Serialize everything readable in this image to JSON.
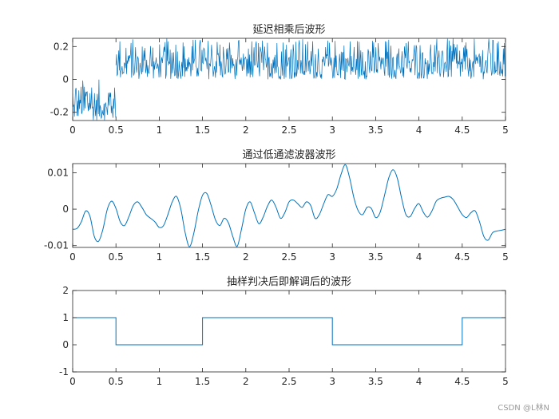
{
  "watermark": "CSDN @L林N",
  "chart_data": [
    {
      "type": "line",
      "title": "延迟相乘后波形",
      "xlim": [
        0,
        5
      ],
      "ylim": [
        -0.25,
        0.25
      ],
      "x_ticks": [
        0,
        0.5,
        1,
        1.5,
        2,
        2.5,
        3,
        3.5,
        4,
        4.5,
        5
      ],
      "x_tick_labels": [
        "0",
        "0.5",
        "1",
        "1.5",
        "2",
        "2.5",
        "3",
        "3.5",
        "4",
        "4.5",
        "5"
      ],
      "y_ticks": [
        -0.2,
        0,
        0.2
      ],
      "y_tick_labels": [
        "-0.2",
        "0",
        "0.2"
      ],
      "color": "#0072BD",
      "series": [
        {
          "segments": [
            {
              "x_range": [
                0,
                0.5
              ],
              "baseline": 0.0,
              "min": -0.25,
              "max": 0.0,
              "note_kind": "noise"
            },
            {
              "x_range": [
                0.5,
                5
              ],
              "baseline": 0.0,
              "min": 0.0,
              "max": 0.25,
              "note_kind": "noise"
            }
          ]
        }
      ]
    },
    {
      "type": "line",
      "title": "通过低通滤波器波形",
      "xlim": [
        0,
        5
      ],
      "ylim": [
        -0.0105,
        0.0125
      ],
      "x_ticks": [
        0,
        0.5,
        1,
        1.5,
        2,
        2.5,
        3,
        3.5,
        4,
        4.5,
        5
      ],
      "x_tick_labels": [
        "0",
        "0.5",
        "1",
        "1.5",
        "2",
        "2.5",
        "3",
        "3.5",
        "4",
        "4.5",
        "5"
      ],
      "y_ticks": [
        -0.01,
        0,
        0.01
      ],
      "y_tick_labels": [
        "-0.01",
        "0",
        "0.01"
      ],
      "color": "#0072BD",
      "series": [
        {
          "x": [
            0,
            0.05,
            0.1,
            0.15,
            0.2,
            0.25,
            0.3,
            0.35,
            0.4,
            0.45,
            0.5,
            0.55,
            0.6,
            0.65,
            0.7,
            0.75,
            0.8,
            0.85,
            0.9,
            0.95,
            1.0,
            1.05,
            1.1,
            1.15,
            1.2,
            1.25,
            1.3,
            1.35,
            1.4,
            1.45,
            1.5,
            1.55,
            1.6,
            1.65,
            1.7,
            1.75,
            1.8,
            1.85,
            1.9,
            1.95,
            2.0,
            2.05,
            2.1,
            2.15,
            2.2,
            2.25,
            2.3,
            2.35,
            2.4,
            2.45,
            2.5,
            2.55,
            2.6,
            2.65,
            2.7,
            2.75,
            2.8,
            2.85,
            2.9,
            2.95,
            3.0,
            3.05,
            3.1,
            3.15,
            3.2,
            3.25,
            3.3,
            3.35,
            3.4,
            3.45,
            3.5,
            3.55,
            3.6,
            3.65,
            3.7,
            3.75,
            3.8,
            3.85,
            3.9,
            3.95,
            4.0,
            4.05,
            4.1,
            4.15,
            4.2,
            4.25,
            4.3,
            4.35,
            4.4,
            4.45,
            4.5,
            4.55,
            4.6,
            4.65,
            4.7,
            4.75,
            4.8,
            4.85,
            4.9,
            4.95,
            5.0
          ],
          "y": [
            -0.0055,
            -0.0053,
            -0.0035,
            -0.0005,
            -0.002,
            -0.0075,
            -0.0088,
            -0.0055,
            0.0,
            0.0022,
            0.0002,
            -0.0035,
            -0.0045,
            -0.002,
            0.001,
            0.002,
            0.0005,
            -0.0015,
            -0.0025,
            -0.0035,
            -0.005,
            -0.0045,
            -0.0015,
            0.002,
            0.0035,
            0.0,
            -0.0065,
            -0.0103,
            -0.0065,
            -0.0005,
            0.0038,
            0.0043,
            0.001,
            -0.003,
            -0.0045,
            -0.0025,
            -0.0038,
            -0.0075,
            -0.0102,
            -0.0055,
            0.0,
            0.002,
            -0.001,
            -0.004,
            -0.0022,
            0.0008,
            0.0025,
            0.0005,
            -0.0025,
            -0.001,
            0.002,
            0.0025,
            0.0015,
            0.0005,
            0.002,
            0.001,
            -0.0025,
            -0.0015,
            0.0015,
            0.004,
            0.0035,
            0.0055,
            0.0095,
            0.0122,
            0.0085,
            0.003,
            -0.0005,
            -0.0015,
            0.0005,
            0.0002,
            -0.0023,
            -0.001,
            0.0035,
            0.0085,
            0.0108,
            0.0085,
            0.003,
            -0.0015,
            -0.002,
            0.0002,
            0.0015,
            -0.0008,
            -0.0022,
            -0.0005,
            0.0022,
            0.003,
            0.0033,
            0.0035,
            0.0025,
            0.0005,
            -0.0015,
            -0.0023,
            -0.001,
            -0.0005,
            -0.0035,
            -0.0075,
            -0.0085,
            -0.0065,
            -0.006,
            -0.0058,
            -0.0055
          ]
        }
      ]
    },
    {
      "type": "line",
      "title": "抽样判决后即解调后的波形",
      "xlim": [
        0,
        5
      ],
      "ylim": [
        -1,
        2
      ],
      "x_ticks": [
        0,
        0.5,
        1,
        1.5,
        2,
        2.5,
        3,
        3.5,
        4,
        4.5,
        5
      ],
      "x_tick_labels": [
        "0",
        "0.5",
        "1",
        "1.5",
        "2",
        "2.5",
        "3",
        "3.5",
        "4",
        "4.5",
        "5"
      ],
      "y_ticks": [
        -1,
        0,
        1,
        2
      ],
      "y_tick_labels": [
        "-1",
        "0",
        "1",
        "2"
      ],
      "color": "#0072BD",
      "series": [
        {
          "x": [
            0,
            0.5,
            0.5,
            1.5,
            1.5,
            3,
            3,
            4.5,
            4.5,
            5
          ],
          "y": [
            1,
            1,
            0,
            0,
            1,
            1,
            0,
            0,
            1,
            1
          ]
        }
      ]
    }
  ]
}
